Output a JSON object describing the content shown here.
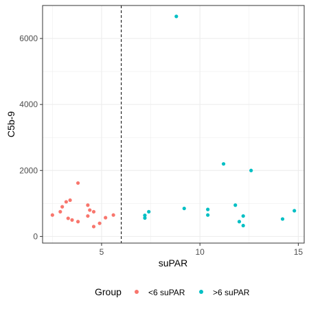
{
  "chart_data": {
    "type": "scatter",
    "title": "",
    "xlabel": "suPAR",
    "ylabel": "C5b-9",
    "xlim": [
      2.0,
      15.3
    ],
    "ylim": [
      -200,
      7000
    ],
    "x_ticks": [
      5,
      10,
      15
    ],
    "y_ticks": [
      0,
      2000,
      4000,
      6000
    ],
    "x_tick_labels": [
      "5",
      "10",
      "15"
    ],
    "y_tick_labels": [
      "0",
      "2000",
      "4000",
      "6000"
    ],
    "grid": true,
    "reference_line": {
      "axis": "x",
      "value": 6,
      "style": "dashed"
    },
    "legend": {
      "title": "Group",
      "position": "bottom",
      "entries": [
        {
          "label": "<6 suPAR",
          "color": "#F8766D"
        },
        {
          "label": ">6 suPAR",
          "color": "#00BFC4"
        }
      ]
    },
    "series": [
      {
        "name": "<6 suPAR",
        "color": "#F8766D",
        "points": [
          [
            2.5,
            650
          ],
          [
            2.9,
            750
          ],
          [
            3.0,
            900
          ],
          [
            3.2,
            1050
          ],
          [
            3.3,
            550
          ],
          [
            3.4,
            1100
          ],
          [
            3.5,
            500
          ],
          [
            3.8,
            450
          ],
          [
            3.8,
            1620
          ],
          [
            4.3,
            950
          ],
          [
            4.3,
            620
          ],
          [
            4.4,
            800
          ],
          [
            4.6,
            750
          ],
          [
            4.6,
            300
          ],
          [
            4.9,
            400
          ],
          [
            5.2,
            570
          ],
          [
            5.6,
            650
          ]
        ]
      },
      {
        "name": ">6 suPAR",
        "color": "#00BFC4",
        "points": [
          [
            7.2,
            640
          ],
          [
            7.2,
            560
          ],
          [
            7.4,
            750
          ],
          [
            8.8,
            6670
          ],
          [
            9.2,
            850
          ],
          [
            10.4,
            820
          ],
          [
            10.4,
            650
          ],
          [
            11.2,
            2200
          ],
          [
            11.8,
            950
          ],
          [
            12.0,
            450
          ],
          [
            12.2,
            620
          ],
          [
            12.2,
            330
          ],
          [
            12.6,
            2000
          ],
          [
            14.2,
            530
          ],
          [
            14.8,
            780
          ]
        ]
      }
    ]
  }
}
